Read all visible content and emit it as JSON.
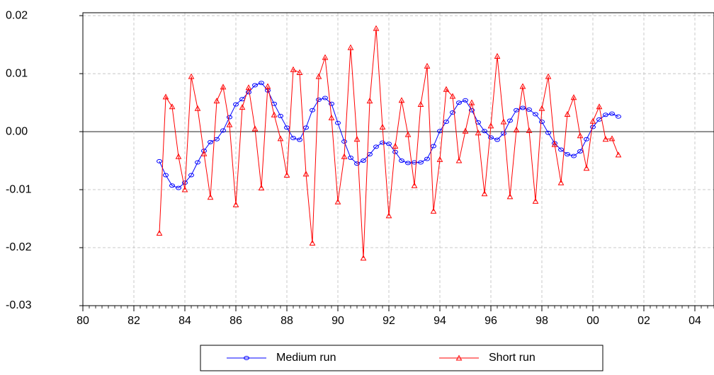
{
  "chart_data": {
    "type": "line",
    "x": [
      1983,
      1983.25,
      1983.5,
      1983.75,
      1984,
      1984.25,
      1984.5,
      1984.75,
      1985,
      1985.25,
      1985.5,
      1985.75,
      1986,
      1986.25,
      1986.5,
      1986.75,
      1987,
      1987.25,
      1987.5,
      1987.75,
      1988,
      1988.25,
      1988.5,
      1988.75,
      1989,
      1989.25,
      1989.5,
      1989.75,
      1990,
      1990.25,
      1990.5,
      1990.75,
      1991,
      1991.25,
      1991.5,
      1991.75,
      1992,
      1992.25,
      1992.5,
      1992.75,
      1993,
      1993.25,
      1993.5,
      1993.75,
      1994,
      1994.25,
      1994.5,
      1994.75,
      1995,
      1995.25,
      1995.5,
      1995.75,
      1996,
      1996.25,
      1996.5,
      1996.75,
      1997,
      1997.25,
      1997.5,
      1997.75,
      1998,
      1998.25,
      1998.5,
      1998.75,
      1999,
      1999.25,
      1999.5,
      1999.75,
      2000,
      2000.25,
      2000.5,
      2000.75,
      2001
    ],
    "series": [
      {
        "name": "Medium run",
        "color": "#0000ff",
        "marker": "circle",
        "values": [
          -0.0051,
          -0.0075,
          -0.0093,
          -0.0097,
          -0.0088,
          -0.0075,
          -0.0053,
          -0.0033,
          -0.0018,
          -0.0013,
          0.0002,
          0.0025,
          0.0047,
          0.0056,
          0.0068,
          0.008,
          0.0084,
          0.0071,
          0.0048,
          0.0027,
          0.0007,
          -0.0011,
          -0.0014,
          0.0007,
          0.0037,
          0.0055,
          0.0058,
          0.0048,
          0.0015,
          -0.0017,
          -0.0045,
          -0.0055,
          -0.005,
          -0.0039,
          -0.0026,
          -0.0019,
          -0.0021,
          -0.0035,
          -0.005,
          -0.0054,
          -0.0053,
          -0.0053,
          -0.0047,
          -0.0025,
          0.0001,
          0.0017,
          0.0033,
          0.005,
          0.0054,
          0.0037,
          0.0016,
          0.0001,
          -0.001,
          -0.0014,
          -0.0003,
          0.0019,
          0.0037,
          0.0041,
          0.0038,
          0.003,
          0.0017,
          -0.0002,
          -0.002,
          -0.0031,
          -0.0039,
          -0.0042,
          -0.0034,
          -0.0013,
          0.0008,
          0.0021,
          0.0029,
          0.0031,
          0.0026
        ]
      },
      {
        "name": "Short run",
        "color": "#ff0000",
        "marker": "triangle",
        "values": [
          -0.0175,
          0.006,
          0.0043,
          -0.0043,
          -0.01,
          0.0095,
          0.004,
          -0.0038,
          -0.0113,
          0.0053,
          0.0077,
          0.0012,
          -0.0126,
          0.0042,
          0.0076,
          0.0005,
          -0.0097,
          0.0078,
          0.0029,
          -0.0012,
          -0.0075,
          0.0107,
          0.0102,
          -0.0073,
          -0.0192,
          0.0095,
          0.0128,
          0.0024,
          -0.0121,
          -0.0043,
          0.0145,
          -0.0013,
          -0.0218,
          0.0053,
          0.0178,
          0.0008,
          -0.0145,
          -0.0025,
          0.0054,
          -0.0005,
          -0.0093,
          0.0047,
          0.0113,
          -0.0137,
          -0.0048,
          0.0073,
          0.0061,
          -0.005,
          0.0001,
          0.005,
          -0.0002,
          -0.0107,
          0.001,
          0.013,
          0.0017,
          -0.0112,
          0.0003,
          0.0078,
          0.0002,
          -0.012,
          0.004,
          0.0095,
          -0.0022,
          -0.0088,
          0.003,
          0.0059,
          -0.0007,
          -0.0063,
          0.0018,
          0.0043,
          -0.0013,
          -0.0012,
          -0.004
        ]
      }
    ],
    "xlim": [
      1980,
      2004.75
    ],
    "xticks": [
      {
        "value": 1980,
        "label": "80"
      },
      {
        "value": 1982,
        "label": "82"
      },
      {
        "value": 1984,
        "label": "84"
      },
      {
        "value": 1986,
        "label": "86"
      },
      {
        "value": 1988,
        "label": "88"
      },
      {
        "value": 1990,
        "label": "90"
      },
      {
        "value": 1992,
        "label": "92"
      },
      {
        "value": 1994,
        "label": "94"
      },
      {
        "value": 1996,
        "label": "96"
      },
      {
        "value": 1998,
        "label": "98"
      },
      {
        "value": 2000,
        "label": "00"
      },
      {
        "value": 2002,
        "label": "02"
      },
      {
        "value": 2004,
        "label": "04"
      }
    ],
    "ylim": [
      -0.03,
      0.0205
    ],
    "yticks": [
      -0.03,
      -0.02,
      -0.01,
      {
        "value": 0,
        "label": "0.00"
      },
      0.01,
      0.02
    ],
    "grid": true,
    "legend": "bottom"
  }
}
